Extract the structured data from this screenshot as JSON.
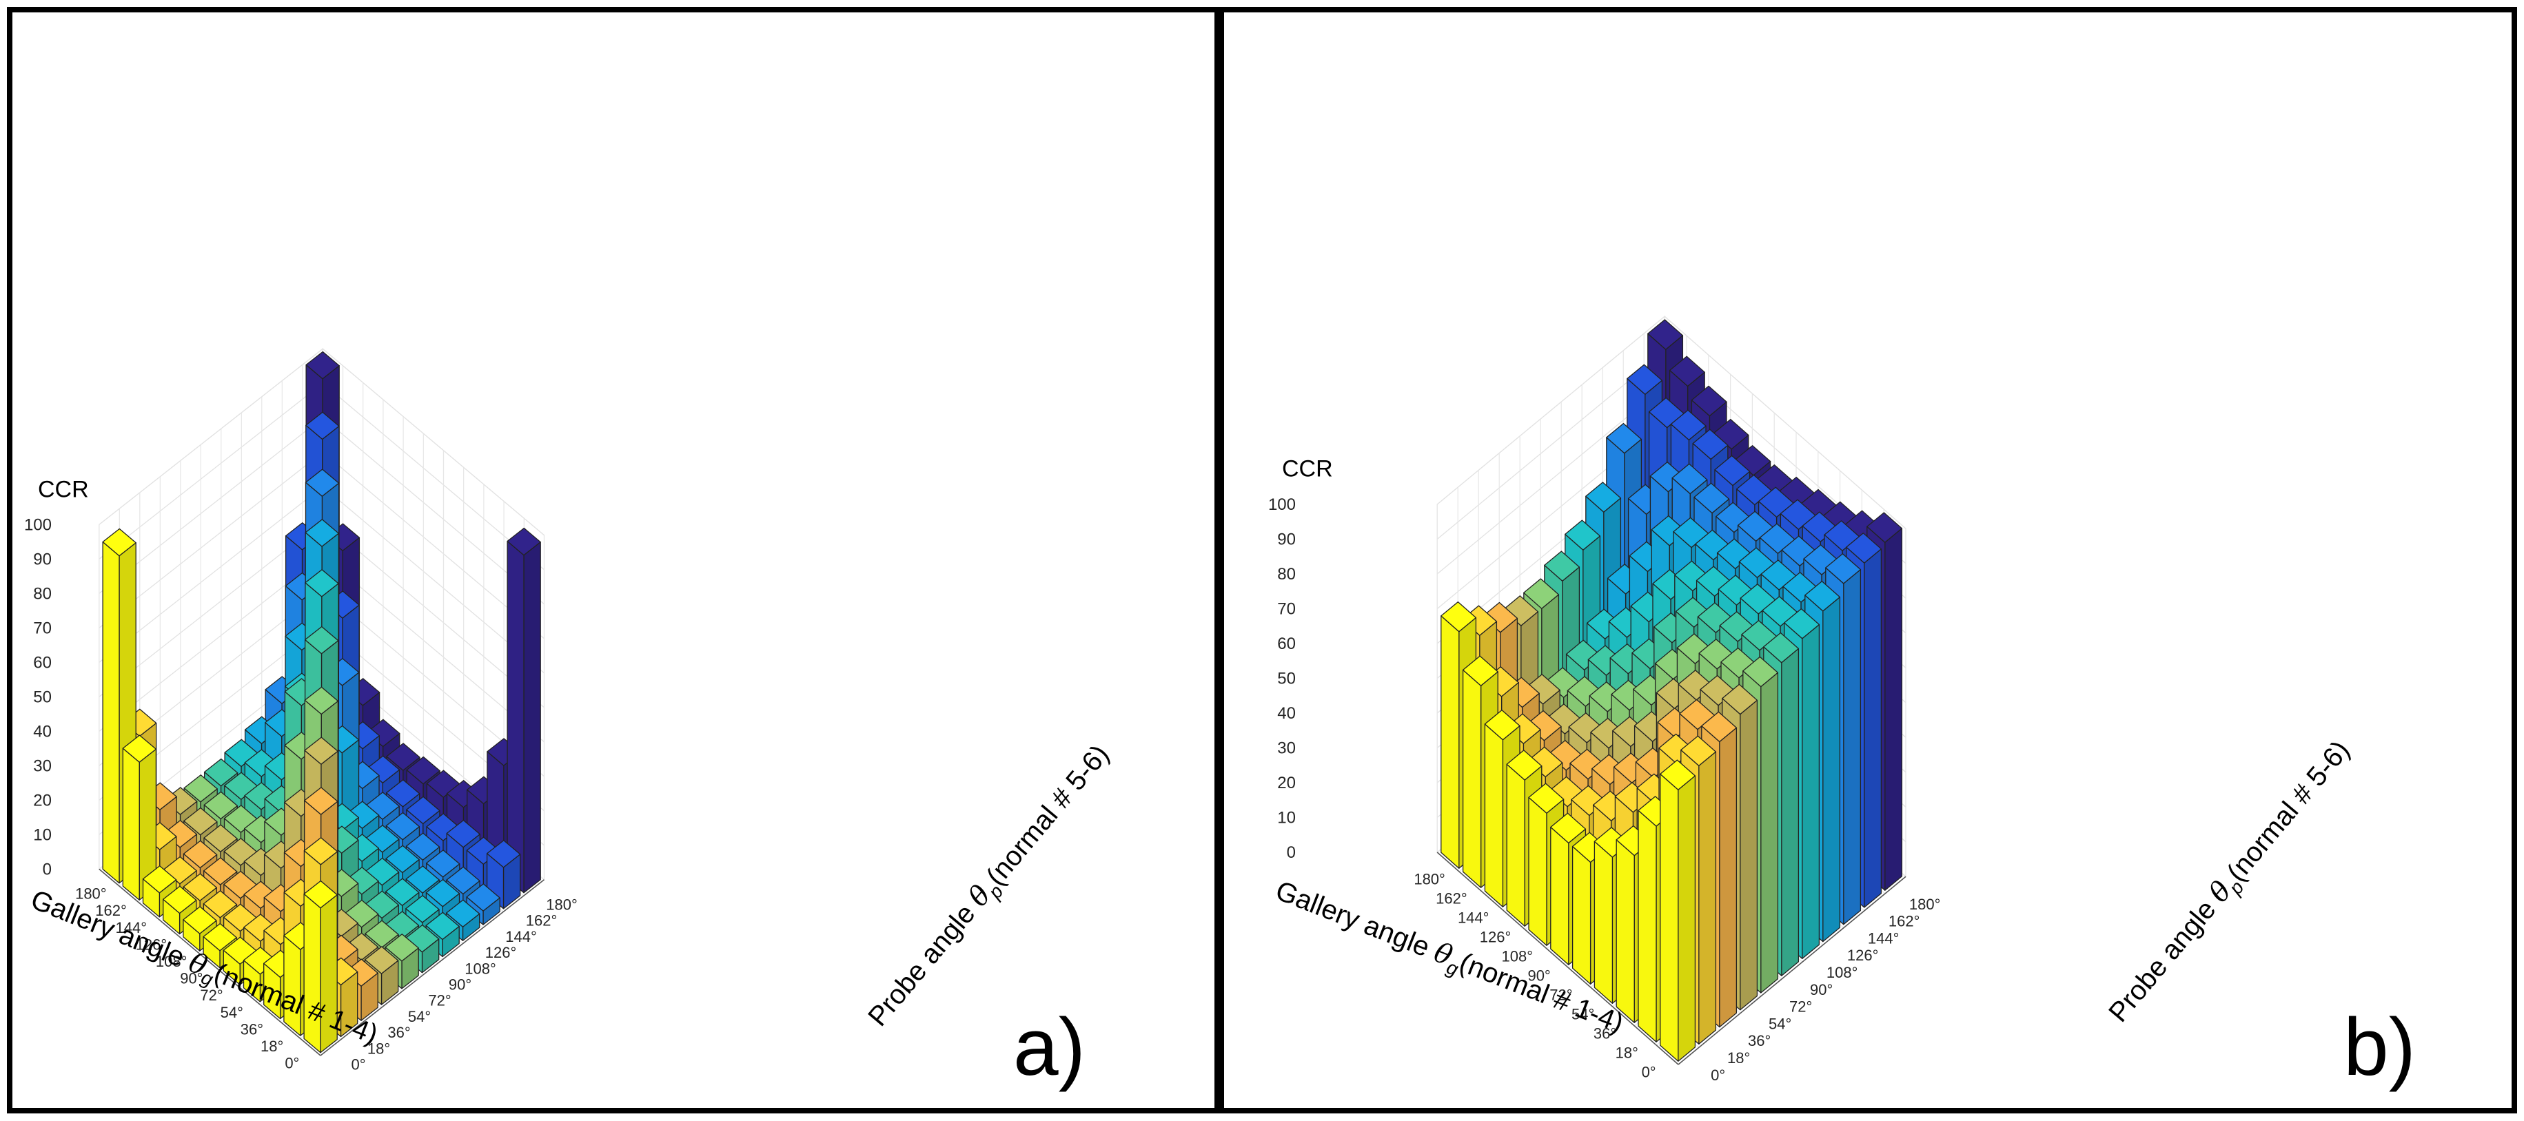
{
  "figure": {
    "panels": [
      "a)",
      "b)"
    ],
    "palette": [
      "#f8f80e",
      "#f6d131",
      "#efb048",
      "#c3b55c",
      "#86c873",
      "#3cbf9d",
      "#1ebcc0",
      "#14a4d7",
      "#1f82e0",
      "#2252d4",
      "#2f2184"
    ]
  },
  "chart_data": [
    {
      "type": "bar3d",
      "panel_label": "a)",
      "zlabel": "CCR",
      "zlim": [
        0,
        100
      ],
      "zticks": [
        "0",
        "10",
        "20",
        "30",
        "40",
        "50",
        "60",
        "70",
        "80",
        "90",
        "100"
      ],
      "xlabel_prefix": "Gallery angle ",
      "xlabel_symbol": "θ",
      "xlabel_sub": "g",
      "xlabel_suffix": "(normal # 1-4)",
      "ylabel_prefix": "Probe angle ",
      "ylabel_symbol": "θ",
      "ylabel_sub": "p",
      "ylabel_suffix": "(normal # 5-6)",
      "gallery_angles": [
        "180°",
        "162°",
        "144°",
        "126°",
        "108°",
        "90°",
        "72°",
        "54°",
        "36°",
        "18°",
        "0°"
      ],
      "probe_angles": [
        "0°",
        "18°",
        "36°",
        "54°",
        "72°",
        "90°",
        "108°",
        "126°",
        "144°",
        "162°",
        "180°"
      ],
      "ccr_matrix": [
        [
          42,
          15,
          10,
          9,
          8,
          6,
          5,
          4,
          4,
          12,
          98
        ],
        [
          25,
          45,
          12,
          8,
          7,
          5,
          5,
          5,
          4,
          8,
          32
        ],
        [
          12,
          28,
          50,
          10,
          8,
          6,
          5,
          4,
          4,
          8,
          16
        ],
        [
          8,
          12,
          30,
          55,
          12,
          8,
          6,
          5,
          4,
          5,
          10
        ],
        [
          6,
          8,
          12,
          35,
          60,
          15,
          8,
          6,
          5,
          5,
          8
        ],
        [
          5,
          6,
          8,
          15,
          42,
          68,
          12,
          8,
          6,
          5,
          7
        ],
        [
          5,
          5,
          6,
          8,
          15,
          48,
          75,
          25,
          10,
          7,
          6
        ],
        [
          6,
          5,
          5,
          6,
          8,
          12,
          40,
          80,
          35,
          12,
          8
        ],
        [
          7,
          5,
          5,
          5,
          6,
          8,
          12,
          45,
          85,
          45,
          15
        ],
        [
          40,
          10,
          6,
          5,
          5,
          6,
          8,
          15,
          50,
          92,
          55
        ],
        [
          95,
          38,
          12,
          6,
          5,
          5,
          6,
          8,
          15,
          55,
          100
        ]
      ]
    },
    {
      "type": "bar3d",
      "panel_label": "b)",
      "zlabel": "CCR",
      "zlim": [
        0,
        100
      ],
      "zticks": [
        "0",
        "10",
        "20",
        "30",
        "40",
        "50",
        "60",
        "70",
        "80",
        "90",
        "100"
      ],
      "xlabel_prefix": "Gallery angle ",
      "xlabel_symbol": "θ",
      "xlabel_sub": "g",
      "xlabel_suffix": "(normal # 1-4)",
      "ylabel_prefix": "Probe angle ",
      "ylabel_symbol": "θ",
      "ylabel_sub": "p",
      "ylabel_suffix": "(normal # 5-6)",
      "gallery_angles": [
        "180°",
        "162°",
        "144°",
        "126°",
        "108°",
        "90°",
        "72°",
        "54°",
        "36°",
        "18°",
        "0°"
      ],
      "probe_angles": [
        "0°",
        "18°",
        "36°",
        "54°",
        "72°",
        "90°",
        "108°",
        "126°",
        "144°",
        "162°",
        "180°"
      ],
      "ccr_matrix": [
        [
          78,
          80,
          82,
          85,
          88,
          90,
          92,
          95,
          98,
          99,
          100
        ],
        [
          62,
          75,
          80,
          82,
          85,
          88,
          90,
          92,
          95,
          97,
          95
        ],
        [
          48,
          58,
          72,
          78,
          82,
          85,
          88,
          90,
          92,
          94,
          92
        ],
        [
          42,
          50,
          55,
          70,
          78,
          82,
          85,
          88,
          90,
          92,
          90
        ],
        [
          35,
          42,
          48,
          55,
          68,
          78,
          82,
          85,
          88,
          90,
          88
        ],
        [
          35,
          38,
          42,
          48,
          55,
          68,
          78,
          82,
          85,
          88,
          86
        ],
        [
          38,
          35,
          38,
          42,
          48,
          55,
          70,
          80,
          85,
          88,
          86
        ],
        [
          42,
          38,
          35,
          38,
          42,
          48,
          58,
          75,
          85,
          90,
          88
        ],
        [
          48,
          42,
          38,
          35,
          38,
          42,
          48,
          62,
          80,
          90,
          92
        ],
        [
          58,
          50,
          42,
          38,
          35,
          38,
          42,
          50,
          68,
          88,
          95
        ],
        [
          68,
          62,
          58,
          55,
          55,
          58,
          62,
          68,
          80,
          92,
          100
        ]
      ]
    }
  ]
}
